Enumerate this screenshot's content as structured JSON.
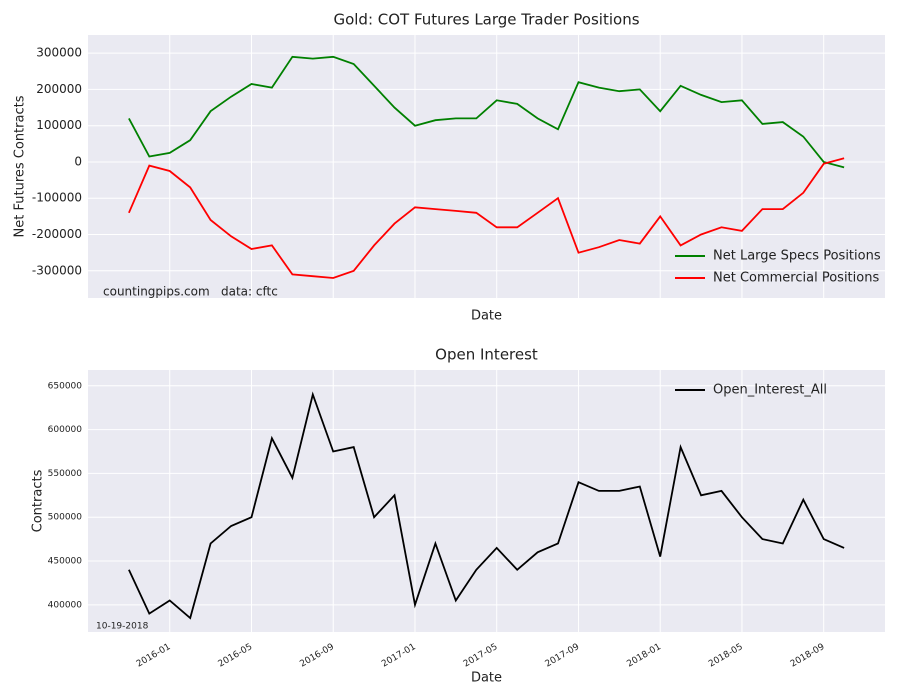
{
  "chart_data": [
    {
      "type": "line",
      "title": "Gold: COT Futures Large Trader Positions",
      "xlabel": "Date",
      "ylabel": "Net Futures Contracts",
      "x": [
        "2015-11",
        "2015-12",
        "2016-01",
        "2016-02",
        "2016-03",
        "2016-04",
        "2016-05",
        "2016-06",
        "2016-07",
        "2016-08",
        "2016-09",
        "2016-10",
        "2016-11",
        "2016-12",
        "2017-01",
        "2017-02",
        "2017-03",
        "2017-04",
        "2017-05",
        "2017-06",
        "2017-07",
        "2017-08",
        "2017-09",
        "2017-10",
        "2017-11",
        "2017-12",
        "2018-01",
        "2018-02",
        "2018-03",
        "2018-04",
        "2018-05",
        "2018-06",
        "2018-07",
        "2018-08",
        "2018-09",
        "2018-10"
      ],
      "series": [
        {
          "name": "Net Large Specs Positions",
          "color": "#008000",
          "values": [
            120000,
            15000,
            25000,
            60000,
            140000,
            180000,
            215000,
            205000,
            290000,
            285000,
            290000,
            270000,
            210000,
            150000,
            100000,
            115000,
            120000,
            120000,
            170000,
            160000,
            120000,
            90000,
            220000,
            205000,
            195000,
            200000,
            140000,
            210000,
            185000,
            165000,
            170000,
            105000,
            110000,
            70000,
            0,
            -15000
          ]
        },
        {
          "name": "Net Commercial Positions",
          "color": "#ff0000",
          "values": [
            -140000,
            -10000,
            -25000,
            -70000,
            -160000,
            -205000,
            -240000,
            -230000,
            -310000,
            -315000,
            -320000,
            -300000,
            -230000,
            -170000,
            -125000,
            -130000,
            -135000,
            -140000,
            -180000,
            -180000,
            -140000,
            -100000,
            -250000,
            -235000,
            -215000,
            -225000,
            -150000,
            -230000,
            -200000,
            -180000,
            -190000,
            -130000,
            -130000,
            -85000,
            -5000,
            10000
          ]
        }
      ],
      "xlim": [
        "2015-09",
        "2018-12"
      ],
      "xticks": [
        "2016-01",
        "2016-05",
        "2016-09",
        "2017-01",
        "2017-05",
        "2017-09",
        "2018-01",
        "2018-05",
        "2018-09"
      ],
      "ylim": [
        -375000,
        350000
      ],
      "yticks": [
        -300000,
        -200000,
        -100000,
        0,
        100000,
        200000,
        300000
      ],
      "grid": true,
      "legend": "lower right",
      "annotations": [
        "countingpips.com",
        "data: cftc"
      ]
    },
    {
      "type": "line",
      "title": "Open Interest",
      "xlabel": "Date",
      "ylabel": "Contracts",
      "x": [
        "2015-11",
        "2015-12",
        "2016-01",
        "2016-02",
        "2016-03",
        "2016-04",
        "2016-05",
        "2016-06",
        "2016-07",
        "2016-08",
        "2016-09",
        "2016-10",
        "2016-11",
        "2016-12",
        "2017-01",
        "2017-02",
        "2017-03",
        "2017-04",
        "2017-05",
        "2017-06",
        "2017-07",
        "2017-08",
        "2017-09",
        "2017-10",
        "2017-11",
        "2017-12",
        "2018-01",
        "2018-02",
        "2018-03",
        "2018-04",
        "2018-05",
        "2018-06",
        "2018-07",
        "2018-08",
        "2018-09",
        "2018-10"
      ],
      "series": [
        {
          "name": "Open_Interest_All",
          "color": "#000000",
          "values": [
            440000,
            390000,
            405000,
            385000,
            470000,
            490000,
            500000,
            590000,
            545000,
            640000,
            575000,
            580000,
            500000,
            525000,
            400000,
            470000,
            405000,
            440000,
            465000,
            440000,
            460000,
            470000,
            540000,
            530000,
            530000,
            535000,
            455000,
            580000,
            525000,
            530000,
            500000,
            475000,
            470000,
            520000,
            475000,
            465000
          ]
        }
      ],
      "xlim": [
        "2015-09",
        "2018-12"
      ],
      "xticks": [
        "2016-01",
        "2016-05",
        "2016-09",
        "2017-01",
        "2017-05",
        "2017-09",
        "2018-01",
        "2018-05",
        "2018-09"
      ],
      "ylim": [
        369000,
        668000
      ],
      "yticks": [
        400000,
        450000,
        500000,
        550000,
        600000,
        650000
      ],
      "grid": true,
      "legend": "upper right",
      "annotations": [
        "10-19-2018"
      ]
    }
  ]
}
